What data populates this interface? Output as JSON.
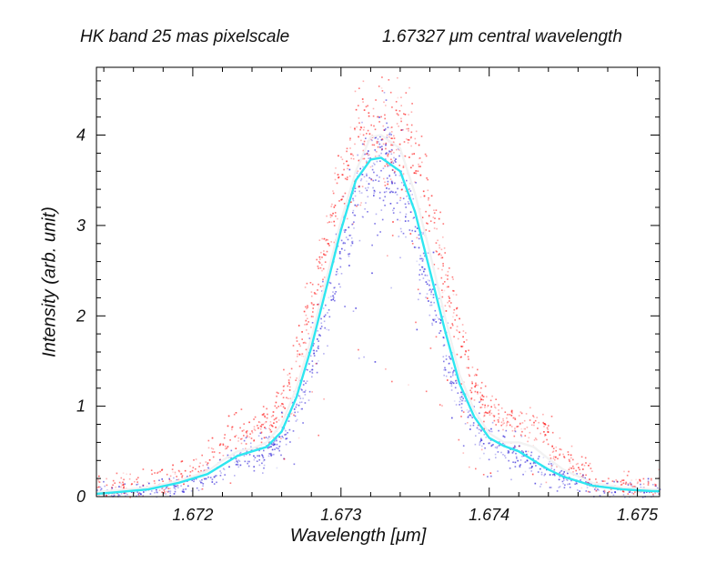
{
  "chart_data": {
    "type": "scatter",
    "title_left": "HK band 25 mas pixelscale",
    "title_right": "1.67327 μm central wavelength",
    "xlabel": "Wavelength [μm]",
    "ylabel": "Intensity (arb. unit)",
    "xlim": [
      1.67135,
      1.67515
    ],
    "ylim": [
      0,
      4.75
    ],
    "xticks": [
      {
        "value": 1.672,
        "label": "1.672"
      },
      {
        "value": 1.673,
        "label": "1.673"
      },
      {
        "value": 1.674,
        "label": "1.674"
      },
      {
        "value": 1.675,
        "label": "1.675"
      }
    ],
    "yticks": [
      {
        "value": 0,
        "label": "0"
      },
      {
        "value": 1,
        "label": "1"
      },
      {
        "value": 2,
        "label": "2"
      },
      {
        "value": 3,
        "label": "3"
      },
      {
        "value": 4,
        "label": "4"
      }
    ],
    "series": [
      {
        "name": "mean-profile-white",
        "kind": "line",
        "color": "#f2f2f2",
        "x": [
          1.67135,
          1.6715,
          1.6717,
          1.6719,
          1.6721,
          1.6722,
          1.6723,
          1.6724,
          1.6725,
          1.6726,
          1.6727,
          1.6728,
          1.6729,
          1.673,
          1.6731,
          1.6732,
          1.67327,
          1.6734,
          1.6735,
          1.6736,
          1.6737,
          1.6738,
          1.6739,
          1.674,
          1.6741,
          1.6742,
          1.6743,
          1.6744,
          1.6745,
          1.6747,
          1.6749,
          1.6751,
          1.67515
        ],
        "y": [
          0.05,
          0.07,
          0.1,
          0.17,
          0.28,
          0.4,
          0.5,
          0.53,
          0.6,
          0.8,
          1.2,
          1.75,
          2.4,
          3.05,
          3.6,
          3.98,
          4.0,
          3.85,
          3.35,
          2.7,
          2.0,
          1.35,
          0.95,
          0.7,
          0.6,
          0.6,
          0.55,
          0.42,
          0.3,
          0.15,
          0.1,
          0.08,
          0.08
        ]
      },
      {
        "name": "mean-profile-cyan",
        "kind": "line",
        "color": "#2ee6f0",
        "x": [
          1.67135,
          1.6715,
          1.6717,
          1.6719,
          1.6721,
          1.6722,
          1.6723,
          1.6724,
          1.6725,
          1.6726,
          1.6727,
          1.6728,
          1.6729,
          1.673,
          1.6731,
          1.6732,
          1.67327,
          1.6734,
          1.6735,
          1.6736,
          1.6737,
          1.6738,
          1.6739,
          1.674,
          1.6741,
          1.6742,
          1.6743,
          1.6744,
          1.6745,
          1.6747,
          1.6749,
          1.6751,
          1.67515
        ],
        "y": [
          0.03,
          0.05,
          0.08,
          0.15,
          0.25,
          0.35,
          0.45,
          0.5,
          0.55,
          0.72,
          1.1,
          1.65,
          2.3,
          2.95,
          3.5,
          3.73,
          3.75,
          3.6,
          3.15,
          2.5,
          1.85,
          1.25,
          0.88,
          0.65,
          0.56,
          0.5,
          0.4,
          0.3,
          0.22,
          0.12,
          0.08,
          0.06,
          0.06
        ]
      },
      {
        "name": "pixel-samples-red",
        "kind": "scatter",
        "color": "#ff1a1a",
        "note": "dense cloud of per-pixel samples, mostly on the high/outer side of the profile with bumps near 1.6723 and 1.6742"
      },
      {
        "name": "pixel-samples-blue",
        "kind": "scatter",
        "color": "#2a1fd6",
        "note": "dense cloud of per-pixel samples, mostly on the inner/lower side of the profile"
      }
    ]
  }
}
